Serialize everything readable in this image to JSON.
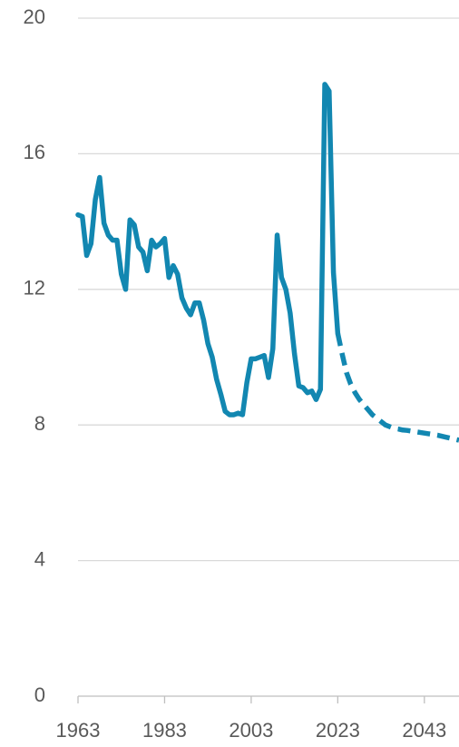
{
  "chart_data": {
    "type": "line",
    "xlim": [
      1963,
      2051
    ],
    "ylim": [
      0,
      20
    ],
    "xticks": [
      1963,
      1983,
      2003,
      2023,
      2043
    ],
    "yticks": [
      0,
      4,
      8,
      12,
      16,
      20
    ],
    "grid": true,
    "series": [
      {
        "color": "#1287b1",
        "dash": false,
        "x": [
          1963,
          1964,
          1965,
          1966,
          1967,
          1968,
          1969,
          1970,
          1971,
          1972,
          1973,
          1974,
          1975,
          1976,
          1977,
          1978,
          1979,
          1980,
          1981,
          1982,
          1983,
          1984,
          1985,
          1986,
          1987,
          1988,
          1989,
          1990,
          1991,
          1992,
          1993,
          1994,
          1995,
          1996,
          1997,
          1998,
          1999,
          2000,
          2001,
          2002,
          2003,
          2004,
          2005,
          2006,
          2007,
          2008,
          2009,
          2010,
          2011,
          2012,
          2013,
          2014,
          2015,
          2016,
          2017,
          2018,
          2019,
          2020,
          2021,
          2022,
          2023
        ],
        "values": [
          14.2,
          14.15,
          13.0,
          13.35,
          14.65,
          15.3,
          13.95,
          13.6,
          13.45,
          13.45,
          12.45,
          12.0,
          14.05,
          13.9,
          13.25,
          13.1,
          12.55,
          13.45,
          13.25,
          13.35,
          13.5,
          12.35,
          12.7,
          12.45,
          11.75,
          11.45,
          11.25,
          11.6,
          11.6,
          11.1,
          10.4,
          10.0,
          9.35,
          8.9,
          8.4,
          8.3,
          8.3,
          8.35,
          8.3,
          9.25,
          9.95,
          9.95,
          10.0,
          10.05,
          9.4,
          10.25,
          13.6,
          12.35,
          12.0,
          11.3,
          10.1,
          9.15,
          9.1,
          8.95,
          9.0,
          8.75,
          9.05,
          18.05,
          17.85,
          12.5,
          10.7
        ]
      },
      {
        "color": "#1287b1",
        "dash": true,
        "x": [
          2023,
          2024,
          2025,
          2026,
          2027,
          2028,
          2029,
          2030,
          2031,
          2032,
          2033,
          2034,
          2035,
          2036,
          2037,
          2038,
          2039,
          2040,
          2041,
          2042,
          2043,
          2044,
          2045,
          2046,
          2047,
          2048,
          2049,
          2050,
          2051
        ],
        "values": [
          10.7,
          10.1,
          9.55,
          9.2,
          8.95,
          8.75,
          8.6,
          8.45,
          8.3,
          8.2,
          8.1,
          8.0,
          7.95,
          7.9,
          7.88,
          7.85,
          7.84,
          7.82,
          7.8,
          7.78,
          7.76,
          7.74,
          7.72,
          7.7,
          7.67,
          7.64,
          7.61,
          7.58,
          7.55
        ]
      }
    ]
  }
}
